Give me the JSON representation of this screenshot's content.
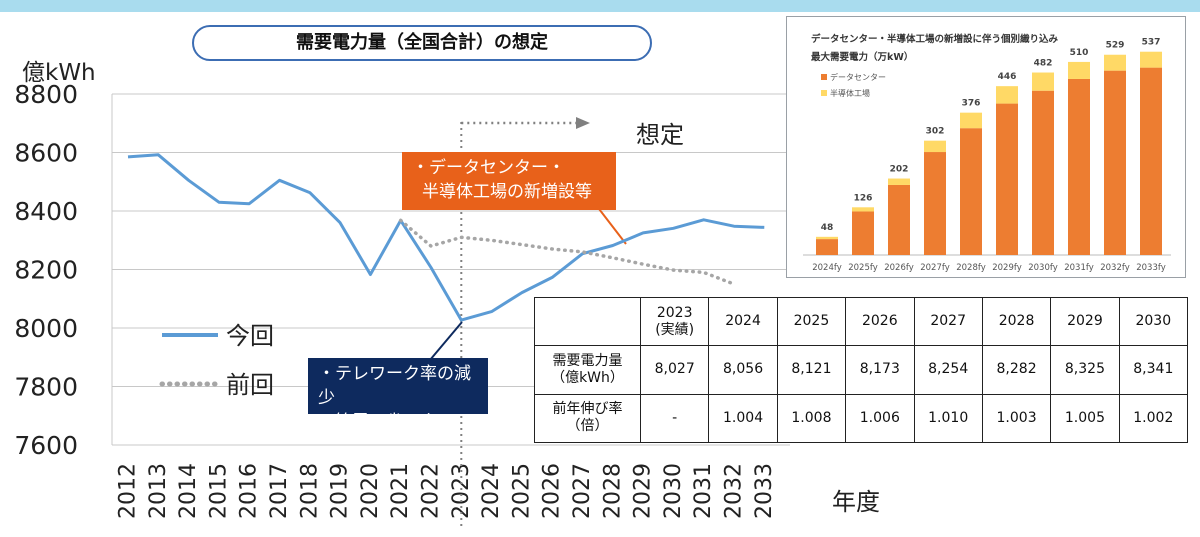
{
  "title": "需要電力量（全国合計）の想定",
  "chart_data": [
    {
      "type": "line",
      "ylabel": "億kWh",
      "xlabel": "年度",
      "ylim": [
        7600,
        8800
      ],
      "yticks": [
        8800,
        8600,
        8400,
        8200,
        8000,
        7800,
        7600
      ],
      "x": [
        "2012",
        "2013",
        "2014",
        "2015",
        "2016",
        "2017",
        "2018",
        "2019",
        "2020",
        "2021",
        "2022",
        "2023",
        "2024",
        "2025",
        "2026",
        "2027",
        "2028",
        "2029",
        "2030",
        "2031",
        "2032",
        "2033"
      ],
      "series": [
        {
          "name": "今回",
          "color": "#5b9bd5",
          "style": "solid",
          "values": [
            8585,
            8592,
            8505,
            8430,
            8425,
            8505,
            8463,
            8360,
            8183,
            8368,
            8207,
            8027,
            8056,
            8121,
            8173,
            8254,
            8282,
            8325,
            8341,
            8370,
            8348,
            8344
          ]
        },
        {
          "name": "前回",
          "color": "#a6a6a6",
          "style": "dotted",
          "values": [
            null,
            null,
            null,
            null,
            null,
            null,
            null,
            null,
            null,
            8368,
            8280,
            8310,
            8300,
            8285,
            8270,
            8260,
            8240,
            8218,
            8198,
            8190,
            8150,
            null
          ]
        }
      ],
      "annotations": {
        "forecast_label": "想定",
        "orange_note": [
          "・データセンター・",
          "半導体工場の新増設等"
        ],
        "navy_note": [
          "・テレワーク率の減少",
          "・節電・省エネ"
        ]
      },
      "grid": true,
      "legend": "left"
    },
    {
      "type": "bar",
      "title": "データセンター・半導体工場の新増設に伴う個別織り込み",
      "subtitle": "最大需要電力（万kW）",
      "categories": [
        "2024fy",
        "2025fy",
        "2026fy",
        "2027fy",
        "2028fy",
        "2029fy",
        "2030fy",
        "2031fy",
        "2032fy",
        "2033fy"
      ],
      "series": [
        {
          "name": "データセンター",
          "color": "#ed7d31",
          "values": [
            42,
            115,
            185,
            272,
            335,
            400,
            434,
            465,
            487,
            495
          ]
        },
        {
          "name": "半導体工場",
          "color": "#ffd966",
          "values": [
            6,
            11,
            17,
            30,
            41,
            46,
            48,
            45,
            42,
            42
          ]
        }
      ],
      "totals": [
        48,
        126,
        202,
        302,
        376,
        446,
        482,
        510,
        529,
        537
      ],
      "ylim": [
        0,
        560
      ],
      "legend": "top-left"
    }
  ],
  "table": {
    "header": [
      "",
      "2023\n(実績)",
      "2024",
      "2025",
      "2026",
      "2027",
      "2028",
      "2029",
      "2030"
    ],
    "rows": [
      {
        "label": "需要電力量\n（億kWh）",
        "values": [
          "8,027",
          "8,056",
          "8,121",
          "8,173",
          "8,254",
          "8,282",
          "8,325",
          "8,341"
        ]
      },
      {
        "label": "前年伸び率\n（倍）",
        "values": [
          "-",
          "1.004",
          "1.008",
          "1.006",
          "1.010",
          "1.003",
          "1.005",
          "1.002"
        ]
      }
    ]
  }
}
